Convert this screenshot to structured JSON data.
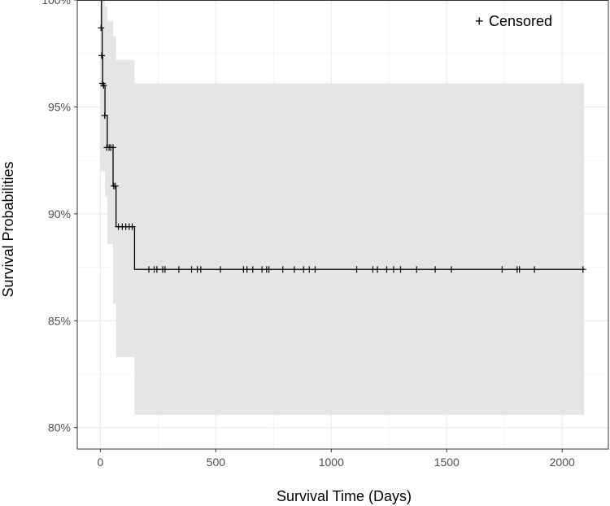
{
  "colors": {
    "background": "#ffffff",
    "panel_border": "#333333",
    "grid_major": "#ebebeb",
    "grid_minor": "#f5f5f5",
    "confidence_band": "#e5e5e5",
    "survival_line": "#000000"
  },
  "chart_data": {
    "type": "line",
    "subtype": "kaplan-meier survival curve with confidence band",
    "title": "",
    "xlabel": "Survival Time (Days)",
    "ylabel": "Survival Probabilities",
    "xlim": [
      -100,
      2200
    ],
    "ylim": [
      0.79,
      1.0
    ],
    "x_ticks": [
      0,
      500,
      1000,
      1500,
      2000
    ],
    "x_tick_labels": [
      "0",
      "500",
      "1000",
      "1500",
      "2000"
    ],
    "y_ticks": [
      0.8,
      0.85,
      0.9,
      0.95,
      1.0
    ],
    "y_tick_labels": [
      "80%",
      "85%",
      "90%",
      "95%",
      "100%"
    ],
    "grid": true,
    "legend": {
      "position": "top-right",
      "symbol": "+",
      "label": "Censored"
    },
    "survival_steps": [
      {
        "x": 0,
        "y": 1.0
      },
      {
        "x": 5,
        "y": 0.987
      },
      {
        "x": 8,
        "y": 0.974
      },
      {
        "x": 10,
        "y": 0.961
      },
      {
        "x": 15,
        "y": 0.96
      },
      {
        "x": 20,
        "y": 0.946
      },
      {
        "x": 30,
        "y": 0.931
      },
      {
        "x": 55,
        "y": 0.913
      },
      {
        "x": 68,
        "y": 0.894
      },
      {
        "x": 148,
        "y": 0.874
      },
      {
        "x": 2095,
        "y": 0.874
      }
    ],
    "confidence_band": [
      {
        "x_start": 0,
        "x_end": 20,
        "lower": 0.92,
        "upper": 1.0
      },
      {
        "x_start": 20,
        "x_end": 30,
        "lower": 0.908,
        "upper": 0.997
      },
      {
        "x_start": 30,
        "x_end": 55,
        "lower": 0.886,
        "upper": 0.99
      },
      {
        "x_start": 55,
        "x_end": 68,
        "lower": 0.858,
        "upper": 0.983
      },
      {
        "x_start": 68,
        "x_end": 148,
        "lower": 0.833,
        "upper": 0.972
      },
      {
        "x_start": 148,
        "x_end": 2095,
        "lower": 0.806,
        "upper": 0.961
      }
    ],
    "censored": [
      {
        "x": 3,
        "y": 0.987
      },
      {
        "x": 6,
        "y": 0.974
      },
      {
        "x": 9,
        "y": 0.961
      },
      {
        "x": 14,
        "y": 0.96
      },
      {
        "x": 19,
        "y": 0.946
      },
      {
        "x": 28,
        "y": 0.931
      },
      {
        "x": 38,
        "y": 0.931
      },
      {
        "x": 45,
        "y": 0.931
      },
      {
        "x": 55,
        "y": 0.931
      },
      {
        "x": 58,
        "y": 0.913
      },
      {
        "x": 65,
        "y": 0.913
      },
      {
        "x": 78,
        "y": 0.894
      },
      {
        "x": 95,
        "y": 0.894
      },
      {
        "x": 110,
        "y": 0.894
      },
      {
        "x": 125,
        "y": 0.894
      },
      {
        "x": 138,
        "y": 0.894
      },
      {
        "x": 210,
        "y": 0.874
      },
      {
        "x": 233,
        "y": 0.874
      },
      {
        "x": 245,
        "y": 0.874
      },
      {
        "x": 270,
        "y": 0.874
      },
      {
        "x": 280,
        "y": 0.874
      },
      {
        "x": 340,
        "y": 0.874
      },
      {
        "x": 395,
        "y": 0.874
      },
      {
        "x": 420,
        "y": 0.874
      },
      {
        "x": 435,
        "y": 0.874
      },
      {
        "x": 520,
        "y": 0.874
      },
      {
        "x": 620,
        "y": 0.874
      },
      {
        "x": 635,
        "y": 0.874
      },
      {
        "x": 660,
        "y": 0.874
      },
      {
        "x": 700,
        "y": 0.874
      },
      {
        "x": 720,
        "y": 0.874
      },
      {
        "x": 730,
        "y": 0.874
      },
      {
        "x": 790,
        "y": 0.874
      },
      {
        "x": 840,
        "y": 0.874
      },
      {
        "x": 880,
        "y": 0.874
      },
      {
        "x": 905,
        "y": 0.874
      },
      {
        "x": 930,
        "y": 0.874
      },
      {
        "x": 1110,
        "y": 0.874
      },
      {
        "x": 1180,
        "y": 0.874
      },
      {
        "x": 1200,
        "y": 0.874
      },
      {
        "x": 1240,
        "y": 0.874
      },
      {
        "x": 1270,
        "y": 0.874
      },
      {
        "x": 1300,
        "y": 0.874
      },
      {
        "x": 1370,
        "y": 0.874
      },
      {
        "x": 1450,
        "y": 0.874
      },
      {
        "x": 1520,
        "y": 0.874
      },
      {
        "x": 1740,
        "y": 0.874
      },
      {
        "x": 1805,
        "y": 0.874
      },
      {
        "x": 1815,
        "y": 0.874
      },
      {
        "x": 1880,
        "y": 0.874
      },
      {
        "x": 2090,
        "y": 0.874
      }
    ]
  }
}
